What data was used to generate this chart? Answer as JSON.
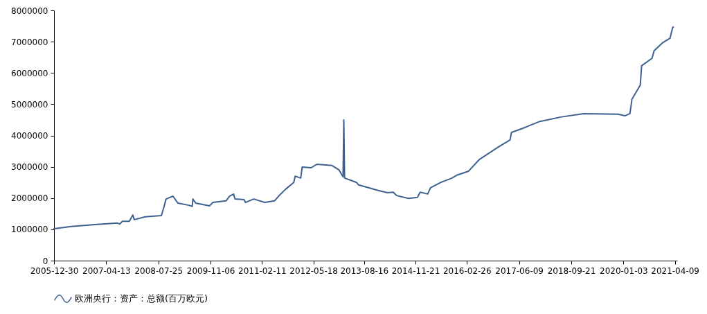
{
  "chart_data": {
    "type": "line",
    "legend": "bottom",
    "grid": false,
    "xlim": [
      "2005-12-30",
      "2021-04-30"
    ],
    "xticks": [
      "2005-12-30",
      "2007-04-13",
      "2008-07-25",
      "2009-11-06",
      "2011-02-11",
      "2012-05-18",
      "2013-08-16",
      "2014-11-21",
      "2016-02-26",
      "2017-06-09",
      "2018-09-21",
      "2020-01-03",
      "2021-04-09"
    ],
    "ylim": [
      0,
      8000000
    ],
    "yticks": [
      0,
      1000000,
      2000000,
      3000000,
      4000000,
      5000000,
      6000000,
      7000000,
      8000000
    ],
    "x": [
      "2005-12-30",
      "2006-06-03",
      "2007-01-01",
      "2007-07-24",
      "2007-08-12",
      "2007-09-06",
      "2007-11-07",
      "2007-12-08",
      "2007-12-21",
      "2008-03-30",
      "2008-08-21",
      "2008-09-14",
      "2008-10-02",
      "2008-12-03",
      "2009-01-16",
      "2009-04-24",
      "2009-05-25",
      "2009-05-31",
      "2009-06-25",
      "2009-10-27",
      "2009-11-27",
      "2010-03-25",
      "2010-04-25",
      "2010-06-01",
      "2010-06-13",
      "2010-09-02",
      "2010-09-15",
      "2010-11-28",
      "2011-03-08",
      "2011-06-03",
      "2011-07-10",
      "2011-09-10",
      "2011-11-23",
      "2011-12-06",
      "2012-01-25",
      "2012-02-07",
      "2012-04-28",
      "2012-06-17",
      "2012-11-01",
      "2013-01-03",
      "2013-02-08",
      "2013-02-15",
      "2013-02-22",
      "2013-06-09",
      "2013-06-28",
      "2013-12-26",
      "2014-03-16",
      "2014-05-05",
      "2014-06-05",
      "2014-09-19",
      "2014-12-08",
      "2015-01-02",
      "2015-03-11",
      "2015-04-05",
      "2015-07-07",
      "2015-10-15",
      "2015-11-27",
      "2016-03-12",
      "2016-06-19",
      "2016-12-04",
      "2017-03-20",
      "2017-04-02",
      "2017-06-28",
      "2017-12-13",
      "2018-06-18",
      "2019-01-09",
      "2019-11-15",
      "2020-01-16",
      "2020-03-01",
      "2020-03-19",
      "2020-06-02",
      "2020-06-14",
      "2020-09-16",
      "2020-10-04",
      "2020-12-18",
      "2021-02-24",
      "2021-03-20",
      "2021-03-26"
    ],
    "series": [
      {
        "name": "欧洲央行：资产：总额(百万欧元)",
        "color": "#3d6190",
        "values": [
          1020000,
          1090000,
          1150000,
          1200000,
          1170000,
          1260000,
          1260000,
          1460000,
          1310000,
          1400000,
          1440000,
          1730000,
          1970000,
          2060000,
          1840000,
          1770000,
          1730000,
          1970000,
          1840000,
          1750000,
          1860000,
          1910000,
          2060000,
          2130000,
          1970000,
          1950000,
          1860000,
          1970000,
          1860000,
          1910000,
          2060000,
          2280000,
          2500000,
          2700000,
          2640000,
          2990000,
          2970000,
          3080000,
          3040000,
          2900000,
          2680000,
          4500000,
          2640000,
          2500000,
          2420000,
          2240000,
          2170000,
          2190000,
          2080000,
          1990000,
          2020000,
          2190000,
          2130000,
          2330000,
          2500000,
          2640000,
          2730000,
          2860000,
          3240000,
          3630000,
          3860000,
          4100000,
          4210000,
          4450000,
          4590000,
          4700000,
          4680000,
          4630000,
          4700000,
          5160000,
          5610000,
          6230000,
          6470000,
          6710000,
          6960000,
          7110000,
          7450000,
          7470000
        ]
      }
    ]
  }
}
